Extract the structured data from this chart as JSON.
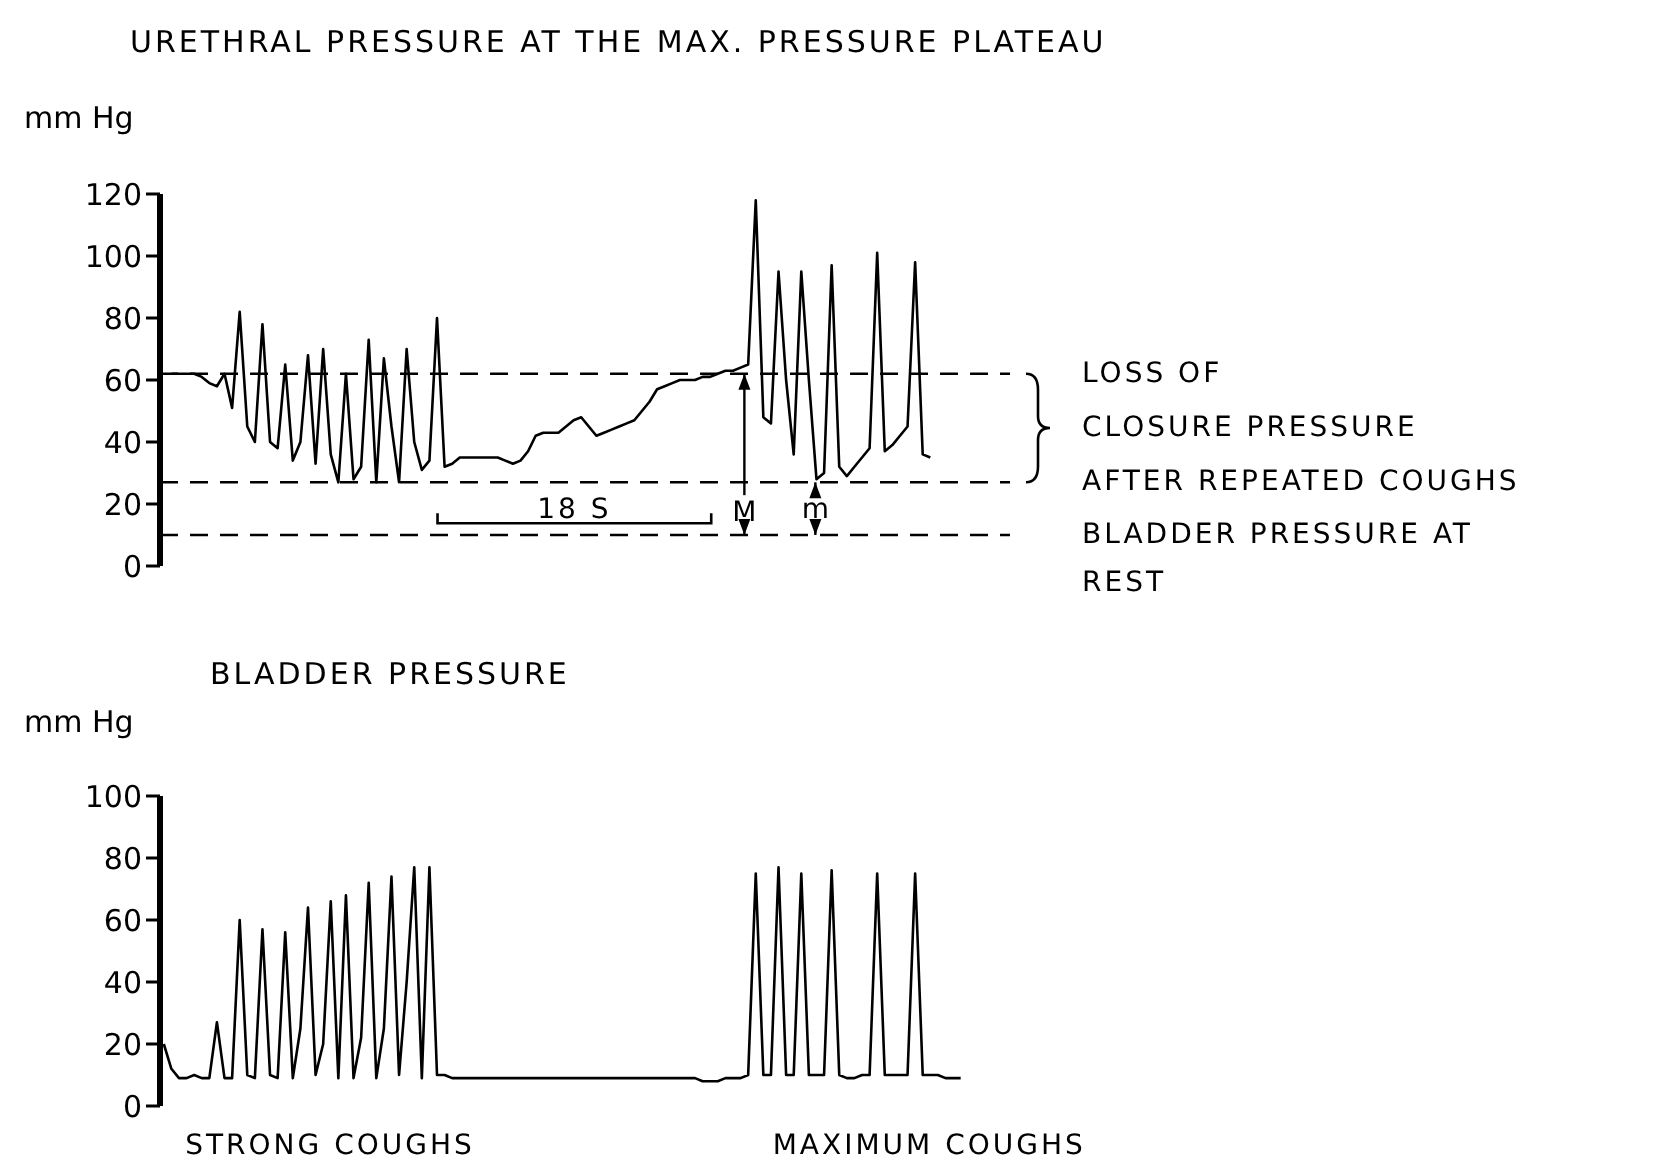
{
  "chart_data": [
    {
      "type": "line",
      "title": "URETHRAL PRESSURE AT THE MAX. PRESSURE PLATEAU",
      "ylabel": "mm Hg",
      "ylim": [
        0,
        120
      ],
      "yticks": [
        0,
        20,
        40,
        60,
        80,
        100,
        120
      ],
      "tick_labels": "y",
      "categories": [
        null,
        null,
        null,
        null,
        null,
        null,
        null,
        null,
        null,
        null,
        null,
        null,
        null,
        null,
        null,
        null,
        null,
        null,
        null,
        null,
        null,
        null,
        null,
        null,
        null,
        null,
        null,
        null,
        null,
        null,
        null,
        null,
        null,
        null,
        null,
        null,
        null,
        null,
        null,
        null,
        null,
        null,
        null,
        null,
        null,
        null,
        null,
        null,
        null,
        null,
        null,
        null,
        null,
        null,
        null,
        null,
        null,
        null,
        null,
        null,
        null,
        null,
        null,
        null,
        null,
        null,
        null,
        null,
        null,
        null,
        null,
        null,
        null,
        null,
        null,
        null,
        null,
        null,
        null,
        null,
        null,
        null,
        null,
        null,
        null,
        null,
        null,
        null,
        null,
        null,
        null,
        null,
        null,
        null,
        null,
        null,
        null,
        null,
        null,
        null,
        null,
        null,
        null,
        null,
        null,
        null,
        null,
        null,
        null,
        null,
        null,
        null
      ],
      "series": [
        {
          "color": "#000000",
          "values": [
            null,
            62,
            62,
            62,
            62,
            61,
            59,
            58,
            62,
            51,
            82,
            45,
            40,
            78,
            40,
            38,
            65,
            34,
            40,
            68,
            33,
            70,
            36,
            27,
            62,
            28,
            32,
            73,
            27,
            67,
            45,
            27,
            70,
            40,
            31,
            34,
            80,
            32,
            33,
            35,
            35,
            35,
            35,
            35,
            35,
            34,
            33,
            34,
            37,
            42,
            43,
            43,
            43,
            45,
            47,
            48,
            45,
            42,
            43,
            44,
            45,
            46,
            47,
            50,
            53,
            57,
            58,
            59,
            60,
            60,
            60,
            61,
            61,
            62,
            63,
            63,
            64,
            65,
            118,
            48,
            46,
            95,
            60,
            36,
            95,
            60,
            28,
            30,
            97,
            32,
            29,
            32,
            35,
            38,
            101,
            37,
            39,
            42,
            45,
            98,
            36,
            35,
            null,
            null,
            null,
            null,
            null,
            null,
            null,
            null,
            null,
            null
          ]
        }
      ],
      "ref_lines": [
        {
          "axis": "y",
          "value": 62,
          "line_style": "dashed",
          "color": "#000000"
        },
        {
          "axis": "y",
          "value": 27,
          "line_style": "dashed",
          "color": "#000000"
        },
        {
          "axis": "y",
          "value": 10,
          "line_style": "dashed",
          "color": "#000000",
          "label": "BLADDER PRESSURE AT\nREST"
        }
      ],
      "annotations": [
        "M",
        "m",
        "18 S",
        "LOSS OF\nCLOSURE PRESSURE\nAFTER REPEATED COUGHS"
      ]
    },
    {
      "type": "line",
      "title": "BLADDER PRESSURE",
      "ylabel": "mm Hg",
      "ylim": [
        0,
        100
      ],
      "yticks": [
        0,
        20,
        40,
        60,
        80,
        100
      ],
      "tick_labels": "y",
      "categories": [
        null,
        null,
        null,
        null,
        null,
        null,
        null,
        null,
        null,
        null,
        null,
        null,
        null,
        null,
        null,
        null,
        null,
        null,
        null,
        null,
        null,
        null,
        null,
        null,
        null,
        null,
        null,
        null,
        null,
        null,
        null,
        null,
        null,
        null,
        null,
        null,
        null,
        null,
        null,
        null,
        null,
        null,
        null,
        null,
        null,
        null,
        null,
        null,
        null,
        null,
        null,
        null,
        null,
        null,
        null,
        null,
        null,
        null,
        null,
        null,
        null,
        null,
        null,
        null,
        null,
        null,
        null,
        null,
        null,
        null,
        null,
        null,
        null,
        null,
        null,
        null,
        null,
        null,
        null,
        null,
        null,
        null,
        null,
        null,
        null,
        null,
        null,
        null,
        null,
        null,
        null,
        null,
        null,
        null,
        null,
        null,
        null,
        null,
        null,
        null,
        null,
        null,
        null,
        null,
        null,
        null,
        null,
        null,
        null,
        null,
        null,
        null
      ],
      "series": [
        {
          "color": "#000000",
          "values": [
            20,
            12,
            9,
            9,
            10,
            9,
            9,
            27,
            9,
            9,
            60,
            10,
            9,
            57,
            10,
            9,
            56,
            9,
            25,
            64,
            10,
            20,
            66,
            9,
            68,
            9,
            22,
            72,
            9,
            25,
            74,
            10,
            40,
            77,
            9,
            77,
            10,
            10,
            9,
            9,
            9,
            9,
            9,
            9,
            9,
            9,
            9,
            9,
            9,
            9,
            9,
            9,
            9,
            9,
            9,
            9,
            9,
            9,
            9,
            9,
            9,
            9,
            9,
            9,
            9,
            9,
            9,
            9,
            9,
            9,
            9,
            8,
            8,
            8,
            9,
            9,
            9,
            10,
            75,
            10,
            10,
            77,
            10,
            10,
            75,
            10,
            10,
            10,
            76,
            10,
            9,
            9,
            10,
            10,
            75,
            10,
            10,
            10,
            10,
            75,
            10,
            10,
            10,
            9,
            9,
            9,
            null,
            null,
            null,
            null,
            null,
            null
          ]
        }
      ],
      "annotations": [
        "STRONG COUGHS",
        "MAXIMUM COUGHS"
      ]
    }
  ]
}
